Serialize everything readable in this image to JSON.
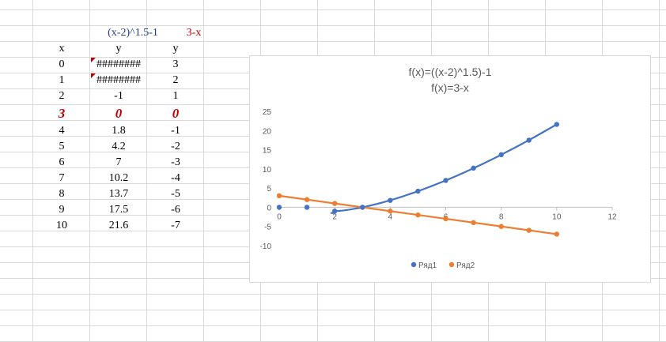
{
  "sheet": {
    "formula_label": "(x-2)^1.5-1",
    "line_label": "3-x",
    "headers": {
      "x": "x",
      "y1": "y",
      "y2": "y"
    },
    "rows": [
      {
        "x": "0",
        "y1": "########",
        "y2": "3",
        "error": true
      },
      {
        "x": "1",
        "y1": "########",
        "y2": "2",
        "error": true
      },
      {
        "x": "2",
        "y1": "-1",
        "y2": "1"
      },
      {
        "x": "3",
        "y1": "0",
        "y2": "0",
        "highlight": true
      },
      {
        "x": "4",
        "y1": "1.8",
        "y2": "-1"
      },
      {
        "x": "5",
        "y1": "4.2",
        "y2": "-2"
      },
      {
        "x": "6",
        "y1": "7",
        "y2": "-3"
      },
      {
        "x": "7",
        "y1": "10.2",
        "y2": "-4"
      },
      {
        "x": "8",
        "y1": "13.7",
        "y2": "-5"
      },
      {
        "x": "9",
        "y1": "17.5",
        "y2": "-6"
      },
      {
        "x": "10",
        "y1": "21.6",
        "y2": "-7"
      }
    ]
  },
  "chart_data": {
    "type": "scatter",
    "title": "f(x)=((x-2)^1.5)-1",
    "subtitle": "f(x)=3-x",
    "xlim": [
      0,
      12
    ],
    "ylim": [
      -10,
      25
    ],
    "xticks": [
      0,
      2,
      4,
      6,
      8,
      10,
      12
    ],
    "yticks": [
      -10,
      -5,
      0,
      5,
      10,
      15,
      20,
      25
    ],
    "grid": false,
    "legend_position": "bottom",
    "series": [
      {
        "name": "Ряд1",
        "color": "#4472c4",
        "points": [
          [
            0,
            0
          ],
          [
            1,
            0
          ],
          [
            2,
            -1
          ],
          [
            3,
            0
          ],
          [
            4,
            1.8
          ],
          [
            5,
            4.2
          ],
          [
            6,
            7
          ],
          [
            7,
            10.2
          ],
          [
            8,
            13.7
          ],
          [
            9,
            17.5
          ],
          [
            10,
            21.6
          ]
        ]
      },
      {
        "name": "Ряд2",
        "color": "#ed7d31",
        "points": [
          [
            0,
            3
          ],
          [
            1,
            2
          ],
          [
            2,
            1
          ],
          [
            3,
            0
          ],
          [
            4,
            -1
          ],
          [
            5,
            -2
          ],
          [
            6,
            -3
          ],
          [
            7,
            -4
          ],
          [
            8,
            -5
          ],
          [
            9,
            -6
          ],
          [
            10,
            -7
          ]
        ]
      }
    ]
  }
}
